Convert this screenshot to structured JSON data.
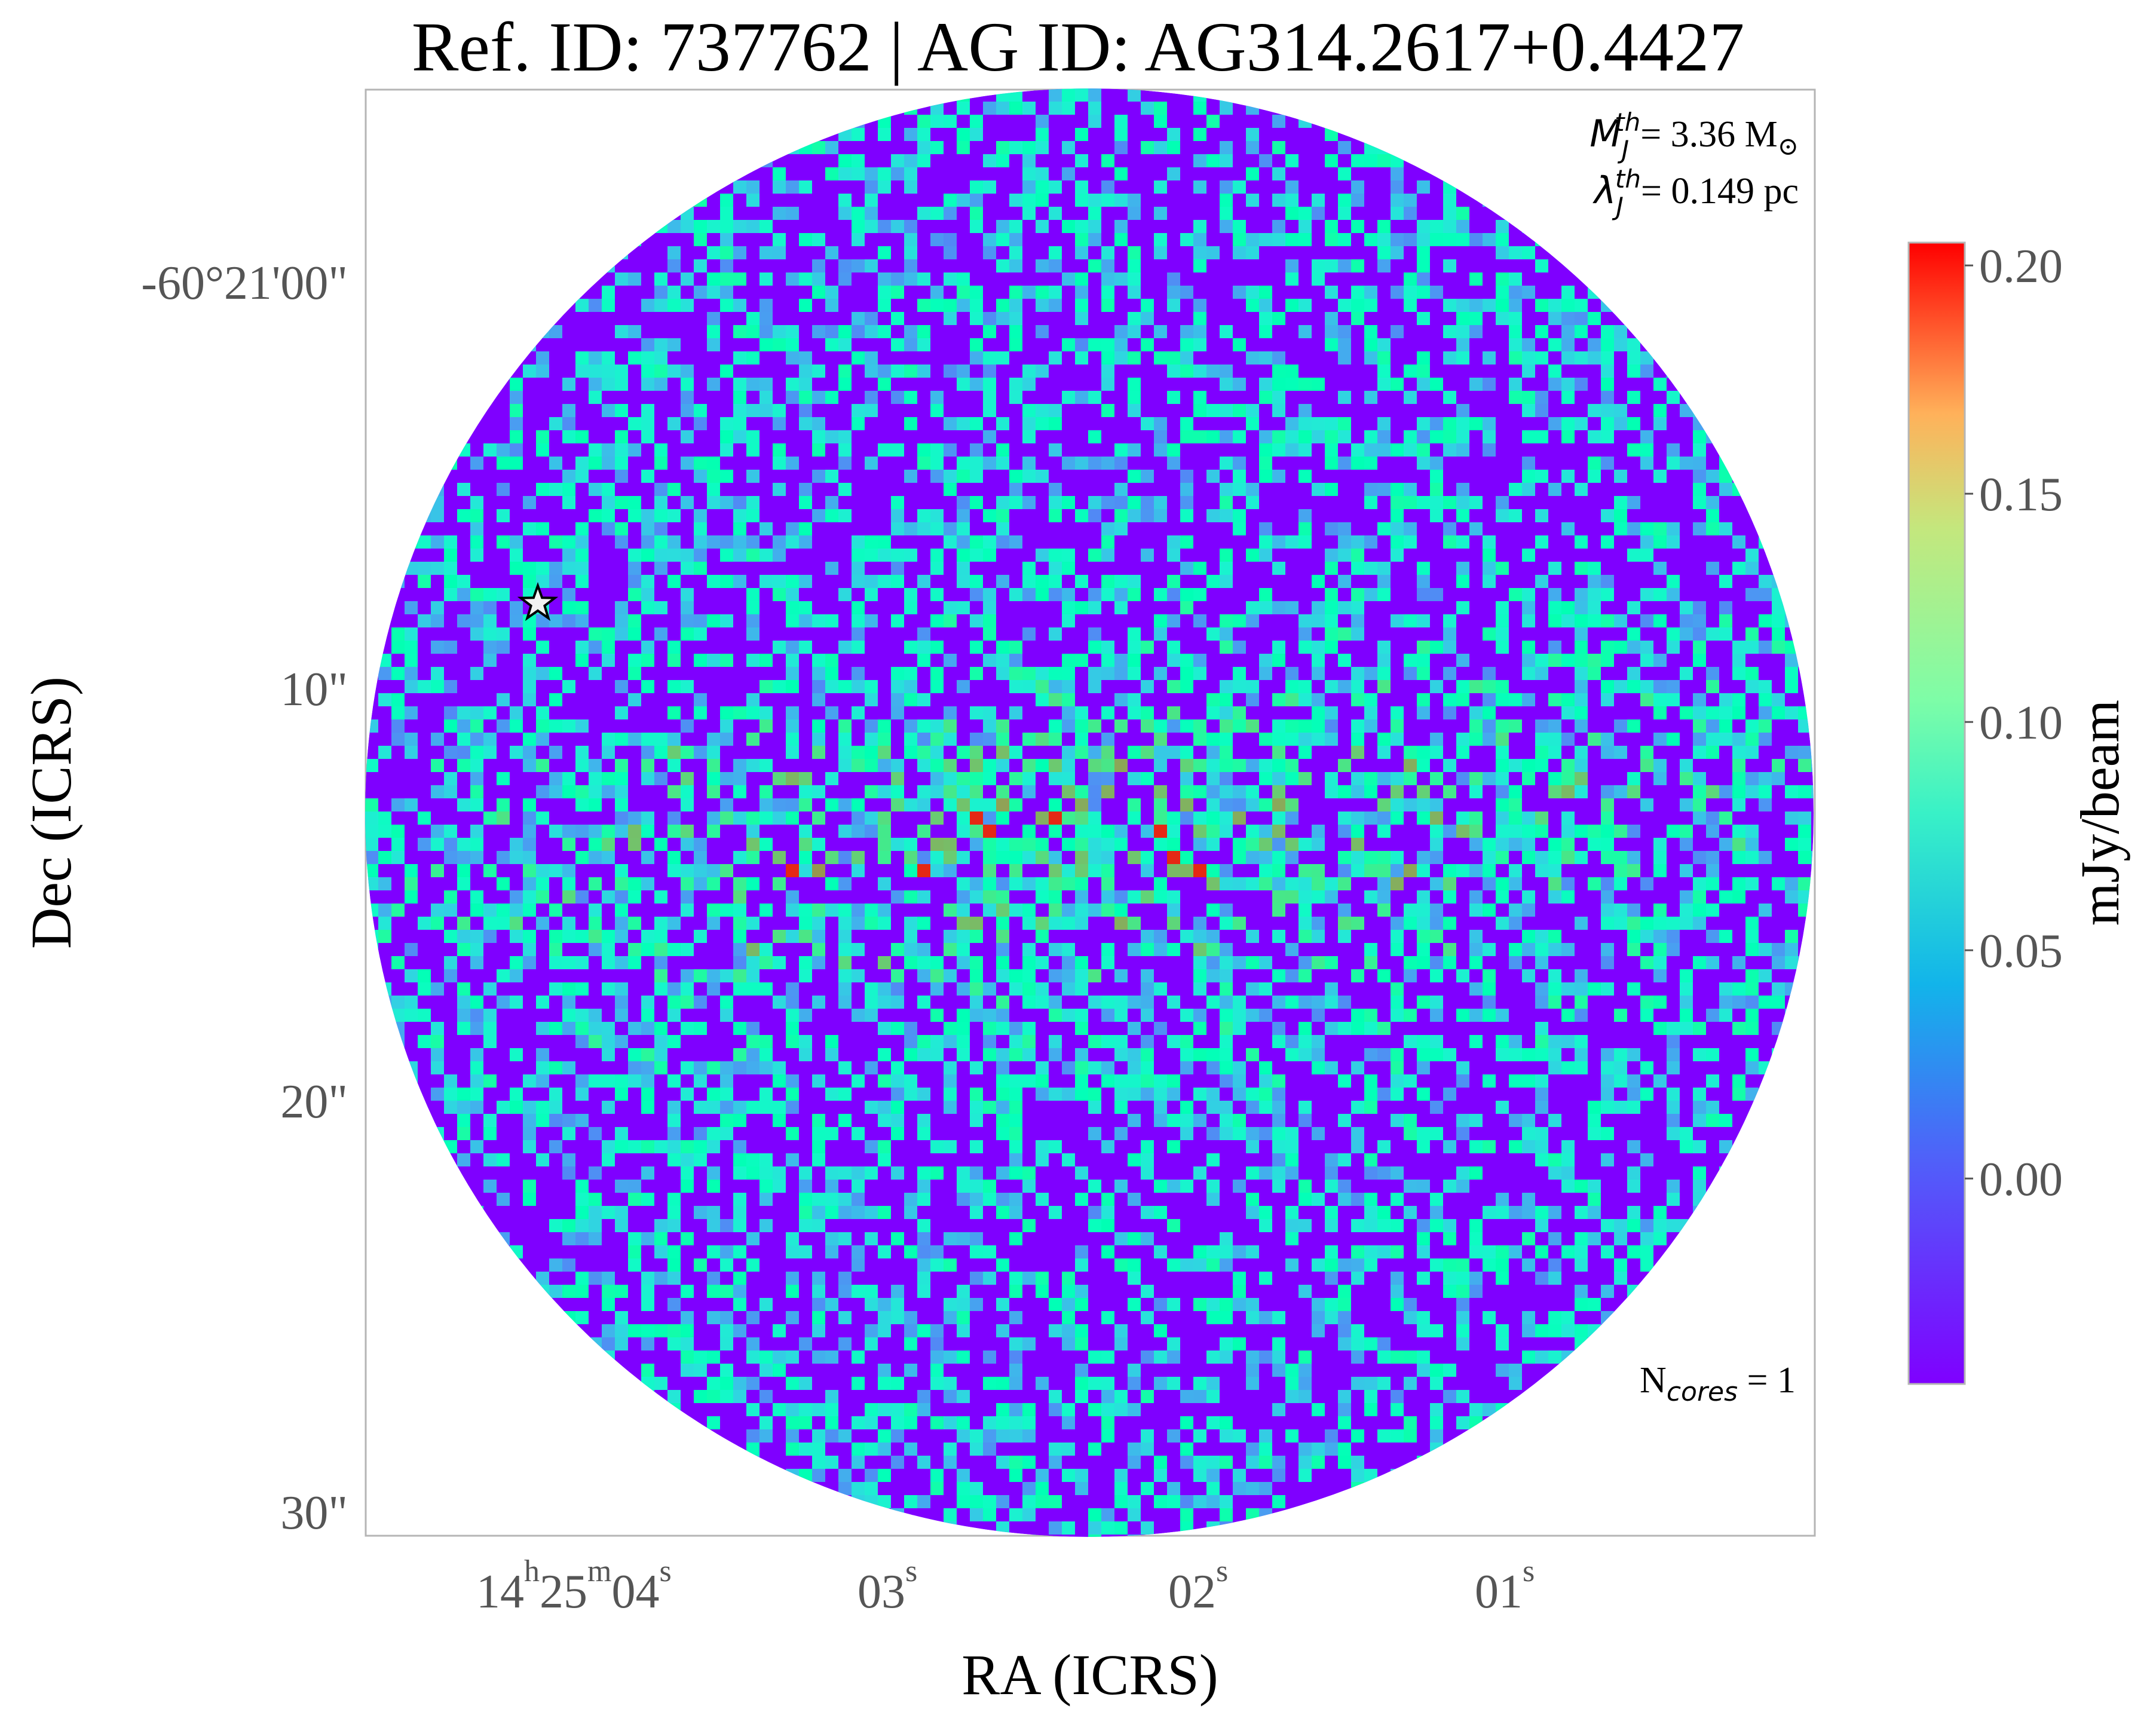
{
  "chart_data": {
    "type": "heatmap",
    "title": "Ref. ID: 737762 | AG ID: AG314.2617+0.4427",
    "xlabel": "RA (ICRS)",
    "ylabel": "Dec (ICRS)",
    "x_ticks": [
      {
        "h": "14",
        "h_sup": "h",
        "m": "25",
        "m_sup": "m",
        "s": "04",
        "s_sup": "s"
      },
      {
        "s": "03",
        "s_sup": "s"
      },
      {
        "s": "02",
        "s_sup": "s"
      },
      {
        "s": "01",
        "s_sup": "s"
      }
    ],
    "y_ticks": [
      "-60°21'00\"",
      "10\"",
      "20\"",
      "30\""
    ],
    "colorbar": {
      "label": "mJy/beam",
      "min": -0.045,
      "max": 0.205,
      "ticks": [
        "0.20",
        "0.15",
        "0.10",
        "0.05",
        "0.00"
      ],
      "tick_values": [
        0.2,
        0.15,
        0.1,
        0.05,
        0.0
      ],
      "colormap": "rainbow"
    },
    "annotations": {
      "mass_symbol": "M",
      "mass_sub": "J",
      "mass_sup": "th",
      "mass_value": "= 3.36 M",
      "mass_unit_sub": "⊙",
      "lambda_symbol": "λ",
      "lambda_sub": "J",
      "lambda_sup": "th",
      "lambda_value": "= 0.149 pc",
      "ncores_prefix": "N",
      "ncores_sub": "cores",
      "ncores_value": " = 1"
    },
    "markers": [
      {
        "type": "star",
        "label": "core",
        "ra_offset_s": 3.75,
        "dec_offset_arcsec": 8.0
      }
    ],
    "ylim_arcsec": [
      0,
      30
    ],
    "grid": false
  }
}
